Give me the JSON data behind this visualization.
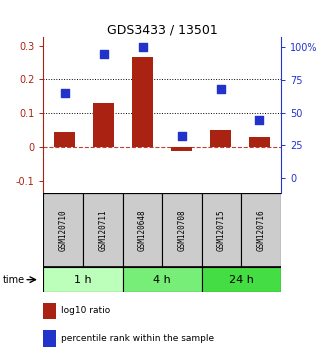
{
  "title": "GDS3433 / 13501",
  "samples": [
    "GSM120710",
    "GSM120711",
    "GSM120648",
    "GSM120708",
    "GSM120715",
    "GSM120716"
  ],
  "groups": [
    {
      "label": "1 h",
      "indices": [
        0,
        1
      ],
      "color": "#bbffbb"
    },
    {
      "label": "4 h",
      "indices": [
        2,
        3
      ],
      "color": "#77ee77"
    },
    {
      "label": "24 h",
      "indices": [
        4,
        5
      ],
      "color": "#44dd44"
    }
  ],
  "log10_ratio": [
    0.045,
    0.13,
    0.265,
    -0.01,
    0.05,
    0.03
  ],
  "percentile_rank_pct": [
    65,
    95,
    100,
    32,
    68,
    44
  ],
  "bar_color": "#aa2211",
  "dot_color": "#2233cc",
  "ylim_left": [
    -0.135,
    0.325
  ],
  "ylim_right": [
    -11.25,
    107.5
  ],
  "yticks_left": [
    -0.1,
    0.0,
    0.1,
    0.2,
    0.3
  ],
  "yticks_right": [
    0,
    25,
    50,
    75,
    100
  ],
  "ytick_labels_left": [
    "-0.1",
    "0",
    "0.1",
    "0.2",
    "0.3"
  ],
  "ytick_labels_right": [
    "0",
    "25",
    "50",
    "75",
    "100%"
  ],
  "hlines": [
    0.1,
    0.2
  ],
  "dashed_hline_y": 0.0,
  "bar_width": 0.55,
  "dot_size": 30,
  "legend_items": [
    "log10 ratio",
    "percentile rank within the sample"
  ],
  "legend_colors": [
    "#aa2211",
    "#2233cc"
  ],
  "time_label": "time"
}
